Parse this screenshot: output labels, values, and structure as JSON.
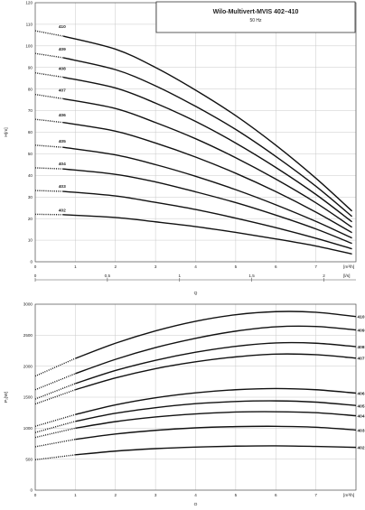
{
  "title_box": {
    "title": "Wilo-Multivert-MVIS 402–410",
    "subtitle": "50 Hz"
  },
  "chart_data": [
    {
      "type": "line",
      "ylabel": "H[m]",
      "xlabel": "Q",
      "x_unit": "[m³/h]",
      "secondary_x_unit": "[l/s]",
      "xlim": [
        0,
        8
      ],
      "ylim": [
        0,
        120
      ],
      "x_ticks": [
        "0",
        "1",
        "2",
        "3",
        "4",
        "5",
        "6",
        "7"
      ],
      "y_ticks": [
        "0",
        "10",
        "20",
        "30",
        "40",
        "50",
        "60",
        "70",
        "80",
        "90",
        "100",
        "110",
        "120"
      ],
      "secondary_x_ticks": [
        {
          "label": "0",
          "value": 0
        },
        {
          "label": "0,5",
          "value": 0.5
        },
        {
          "label": "1",
          "value": 1
        },
        {
          "label": "1,5",
          "value": 1.5
        },
        {
          "label": "2",
          "value": 2
        }
      ],
      "grid": true,
      "x_dotted_until": 0.7,
      "series": [
        {
          "name": "402",
          "x": [
            0,
            0.7,
            2,
            3,
            4,
            5,
            6,
            7,
            7.9
          ],
          "y": [
            22,
            21.8,
            20.5,
            18.5,
            16.3,
            13.6,
            10.6,
            7.3,
            3.6
          ]
        },
        {
          "name": "403",
          "x": [
            0,
            0.7,
            2,
            3,
            4,
            5,
            6,
            7,
            7.9
          ],
          "y": [
            33,
            32.6,
            30.5,
            27.5,
            24.2,
            20.2,
            15.8,
            10.9,
            6
          ]
        },
        {
          "name": "404",
          "x": [
            0,
            0.7,
            2,
            3,
            4,
            5,
            6,
            7,
            7.9
          ],
          "y": [
            43.5,
            43,
            40.5,
            37,
            32.4,
            27.4,
            21.6,
            15.2,
            8.5
          ]
        },
        {
          "name": "405",
          "x": [
            0,
            0.7,
            2,
            3,
            4,
            5,
            6,
            7,
            7.9
          ],
          "y": [
            54,
            53,
            49.5,
            45,
            39.6,
            33.4,
            26.4,
            18.7,
            11
          ]
        },
        {
          "name": "406",
          "x": [
            0,
            0.7,
            2,
            3,
            4,
            5,
            6,
            7,
            7.9
          ],
          "y": [
            66,
            64.5,
            60.5,
            55,
            48.5,
            41,
            32.5,
            23,
            13.5
          ]
        },
        {
          "name": "407",
          "x": [
            0,
            0.7,
            2,
            3,
            4,
            5,
            6,
            7,
            7.9
          ],
          "y": [
            77.5,
            75.5,
            71,
            64.5,
            57,
            48.2,
            38.3,
            27.3,
            16
          ]
        },
        {
          "name": "408",
          "x": [
            0,
            0.7,
            2,
            3,
            4,
            5,
            6,
            7,
            7.9
          ],
          "y": [
            87.5,
            85.5,
            80.5,
            73.5,
            65,
            55,
            43.7,
            31.2,
            18.5
          ]
        },
        {
          "name": "409",
          "x": [
            0,
            0.7,
            2,
            3,
            4,
            5,
            6,
            7,
            7.9
          ],
          "y": [
            96.5,
            94.5,
            89,
            81.5,
            72,
            61.3,
            48.8,
            35,
            21
          ]
        },
        {
          "name": "410",
          "x": [
            0,
            0.7,
            2,
            3,
            4,
            5,
            6,
            7,
            7.9
          ],
          "y": [
            107,
            104.5,
            98.5,
            90,
            79.5,
            67.7,
            54,
            38.7,
            23.5
          ]
        }
      ]
    },
    {
      "type": "line",
      "ylabel": "P₂[W]",
      "xlabel": "Q",
      "x_unit": "[m³/h]",
      "xlim": [
        0,
        8
      ],
      "ylim": [
        0,
        3000
      ],
      "x_ticks": [
        "0",
        "1",
        "2",
        "3",
        "4",
        "5",
        "6",
        "7"
      ],
      "y_ticks": [
        "0",
        "500",
        "1000",
        "1500",
        "2000",
        "2500",
        "3000"
      ],
      "grid": true,
      "x_dotted_until": 1,
      "series": [
        {
          "name": "402",
          "x": [
            0,
            1,
            2,
            3,
            4,
            5,
            6,
            7,
            8
          ],
          "y": [
            490,
            570,
            630,
            670,
            695,
            710,
            715,
            705,
            690
          ]
        },
        {
          "name": "403",
          "x": [
            0,
            1,
            2,
            3,
            4,
            5,
            6,
            7,
            8
          ],
          "y": [
            700,
            820,
            905,
            965,
            1005,
            1025,
            1030,
            1015,
            970
          ]
        },
        {
          "name": "404",
          "x": [
            0,
            1,
            2,
            3,
            4,
            5,
            6,
            7,
            8
          ],
          "y": [
            850,
            1000,
            1105,
            1180,
            1230,
            1260,
            1265,
            1250,
            1200
          ]
        },
        {
          "name": "405",
          "x": [
            0,
            1,
            2,
            3,
            4,
            5,
            6,
            7,
            8
          ],
          "y": [
            930,
            1110,
            1240,
            1330,
            1395,
            1430,
            1440,
            1420,
            1365
          ]
        },
        {
          "name": "406",
          "x": [
            0,
            1,
            2,
            3,
            4,
            5,
            6,
            7,
            8
          ],
          "y": [
            1030,
            1220,
            1375,
            1490,
            1570,
            1620,
            1640,
            1620,
            1565
          ]
        },
        {
          "name": "407",
          "x": [
            0,
            1,
            2,
            3,
            4,
            5,
            6,
            7,
            8
          ],
          "y": [
            1390,
            1620,
            1810,
            1960,
            2070,
            2150,
            2195,
            2185,
            2130
          ]
        },
        {
          "name": "408",
          "x": [
            0,
            1,
            2,
            3,
            4,
            5,
            6,
            7,
            8
          ],
          "y": [
            1470,
            1720,
            1930,
            2095,
            2225,
            2320,
            2375,
            2370,
            2315
          ]
        },
        {
          "name": "409",
          "x": [
            0,
            1,
            2,
            3,
            4,
            5,
            6,
            7,
            8
          ],
          "y": [
            1620,
            1880,
            2110,
            2300,
            2450,
            2565,
            2635,
            2640,
            2585
          ]
        },
        {
          "name": "410",
          "x": [
            0,
            1,
            2,
            3,
            4,
            5,
            6,
            7,
            8
          ],
          "y": [
            1840,
            2125,
            2370,
            2570,
            2725,
            2830,
            2880,
            2870,
            2800
          ]
        }
      ]
    }
  ]
}
